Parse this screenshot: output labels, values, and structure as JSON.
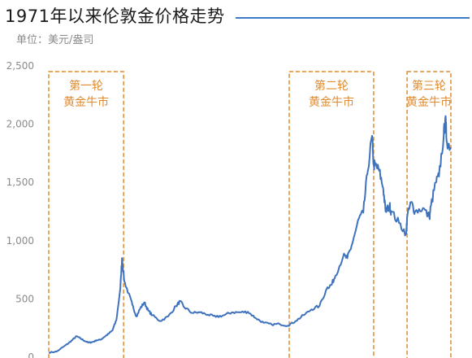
{
  "title": "1971年以来伦敦金价格走势",
  "unit_label": "单位：美元/盎司",
  "colors": {
    "line": "#3f72bd",
    "accent": "#e08a2e",
    "title_rule": "#3b7bc8",
    "axis_text": "#8a8a8a"
  },
  "chart_data": {
    "type": "line",
    "title": "1971年以来伦敦金价格走势",
    "ylabel": "",
    "xlabel": "",
    "ylim": [
      0,
      2500
    ],
    "yticks": [
      {
        "value": 0,
        "label": "0"
      },
      {
        "value": 500,
        "label": "500"
      },
      {
        "value": 1000,
        "label": "1,000"
      },
      {
        "value": 1500,
        "label": "1,500"
      },
      {
        "value": 2000,
        "label": "2,000"
      },
      {
        "value": 2500,
        "label": "2,500"
      }
    ],
    "xlim": [
      1971,
      2021.5
    ],
    "series": [
      {
        "name": "",
        "x": [
          1971,
          1972,
          1973,
          1973.5,
          1974,
          1974.5,
          1975,
          1975.5,
          1976,
          1976.5,
          1977,
          1977.5,
          1978,
          1978.5,
          1979,
          1979.5,
          1980,
          1980.2,
          1980.5,
          1981,
          1981.5,
          1982,
          1982.5,
          1983,
          1983.5,
          1984,
          1985,
          1986,
          1987,
          1987.5,
          1988,
          1989,
          1990,
          1991,
          1992,
          1993,
          1994,
          1995,
          1996,
          1997,
          1998,
          1999,
          2000,
          2001,
          2002,
          2003,
          2004,
          2005,
          2006,
          2006.5,
          2007,
          2008,
          2008.5,
          2009,
          2010,
          2010.5,
          2011,
          2011.6,
          2011.8,
          2012,
          2012.5,
          2013,
          2013.3,
          2013.8,
          2014,
          2015,
          2015.9,
          2016,
          2016.5,
          2017,
          2018,
          2018.8,
          2019,
          2019.6,
          2020,
          2020.6,
          2020.8,
          2021,
          2021.5
        ],
        "y": [
          40,
          48,
          97,
          120,
          150,
          180,
          160,
          140,
          125,
          130,
          145,
          150,
          175,
          200,
          230,
          320,
          600,
          850,
          650,
          550,
          450,
          350,
          420,
          470,
          400,
          360,
          310,
          350,
          440,
          480,
          430,
          380,
          385,
          365,
          345,
          360,
          385,
          385,
          390,
          335,
          295,
          280,
          285,
          270,
          310,
          360,
          410,
          440,
          600,
          620,
          700,
          870,
          850,
          950,
          1200,
          1240,
          1570,
          1900,
          1650,
          1650,
          1600,
          1450,
          1250,
          1300,
          1250,
          1150,
          1060,
          1200,
          1330,
          1250,
          1280,
          1200,
          1300,
          1500,
          1550,
          1900,
          2050,
          1850,
          1800
        ]
      }
    ],
    "annotations": [
      {
        "lines": [
          "第一轮",
          "黄金牛市"
        ],
        "x_start": 1971,
        "x_end": 1980.4
      },
      {
        "lines": [
          "第二轮",
          "黄金牛市"
        ],
        "x_start": 2001.2,
        "x_end": 2011.8
      },
      {
        "lines": [
          "第三轮",
          "黄金牛市"
        ],
        "x_start": 2016,
        "x_end": 2021.5
      }
    ]
  }
}
